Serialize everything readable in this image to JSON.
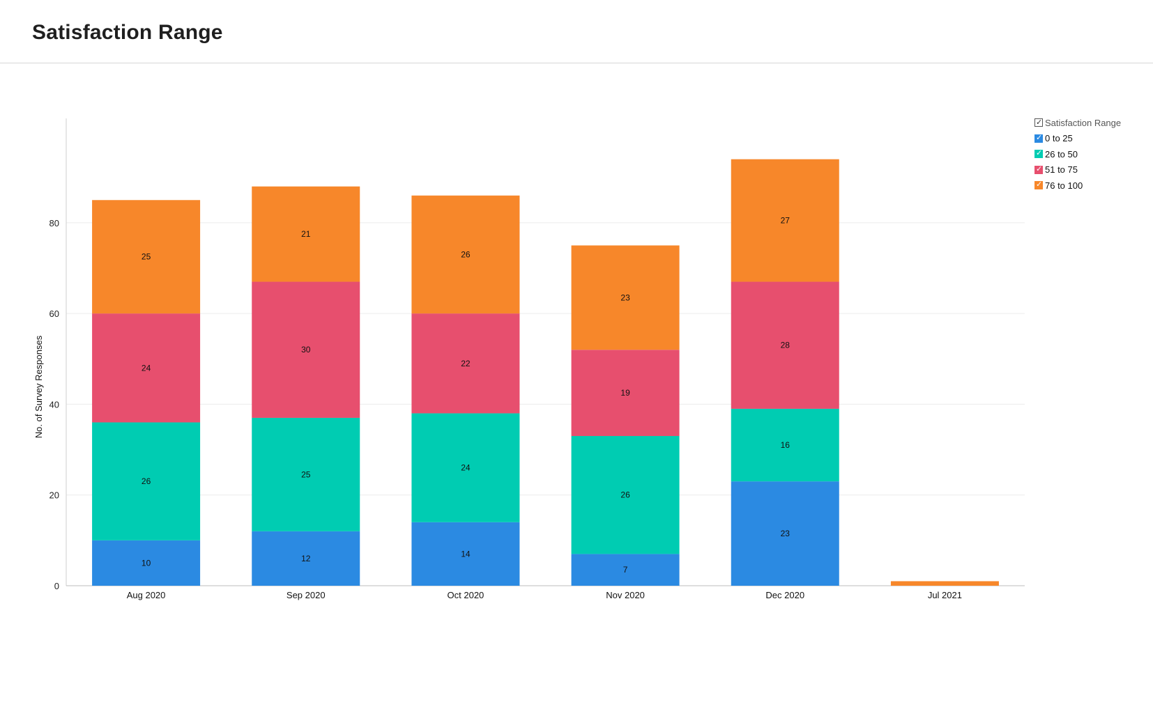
{
  "page": {
    "title": "Satisfaction Range"
  },
  "legend": {
    "title": "Satisfaction Range",
    "items": [
      {
        "label": "0 to 25",
        "color": "#2b8ae2"
      },
      {
        "label": "26 to 50",
        "color": "#00ccb2"
      },
      {
        "label": "51 to 75",
        "color": "#e74f6e"
      },
      {
        "label": "76 to 100",
        "color": "#f7872a"
      }
    ]
  },
  "chart_data": {
    "type": "bar",
    "stacked": true,
    "title": "",
    "xlabel": "",
    "ylabel": "No. of Survey Responses",
    "ylim": [
      0,
      103
    ],
    "yticks": [
      0,
      20,
      40,
      60,
      80
    ],
    "categories": [
      "Aug 2020",
      "Sep 2020",
      "Oct 2020",
      "Nov 2020",
      "Dec 2020",
      "Jul 2021"
    ],
    "series": [
      {
        "name": "0 to 25",
        "color": "#2b8ae2",
        "values": [
          10,
          12,
          14,
          7,
          23,
          0
        ]
      },
      {
        "name": "26 to 50",
        "color": "#00ccb2",
        "values": [
          26,
          25,
          24,
          26,
          16,
          0
        ]
      },
      {
        "name": "51 to 75",
        "color": "#e74f6e",
        "values": [
          24,
          30,
          22,
          19,
          28,
          0
        ]
      },
      {
        "name": "76 to 100",
        "color": "#f7872a",
        "values": [
          25,
          21,
          26,
          23,
          27,
          1
        ]
      }
    ],
    "data_labels": true,
    "grid": true,
    "legend_position": "top-right"
  }
}
